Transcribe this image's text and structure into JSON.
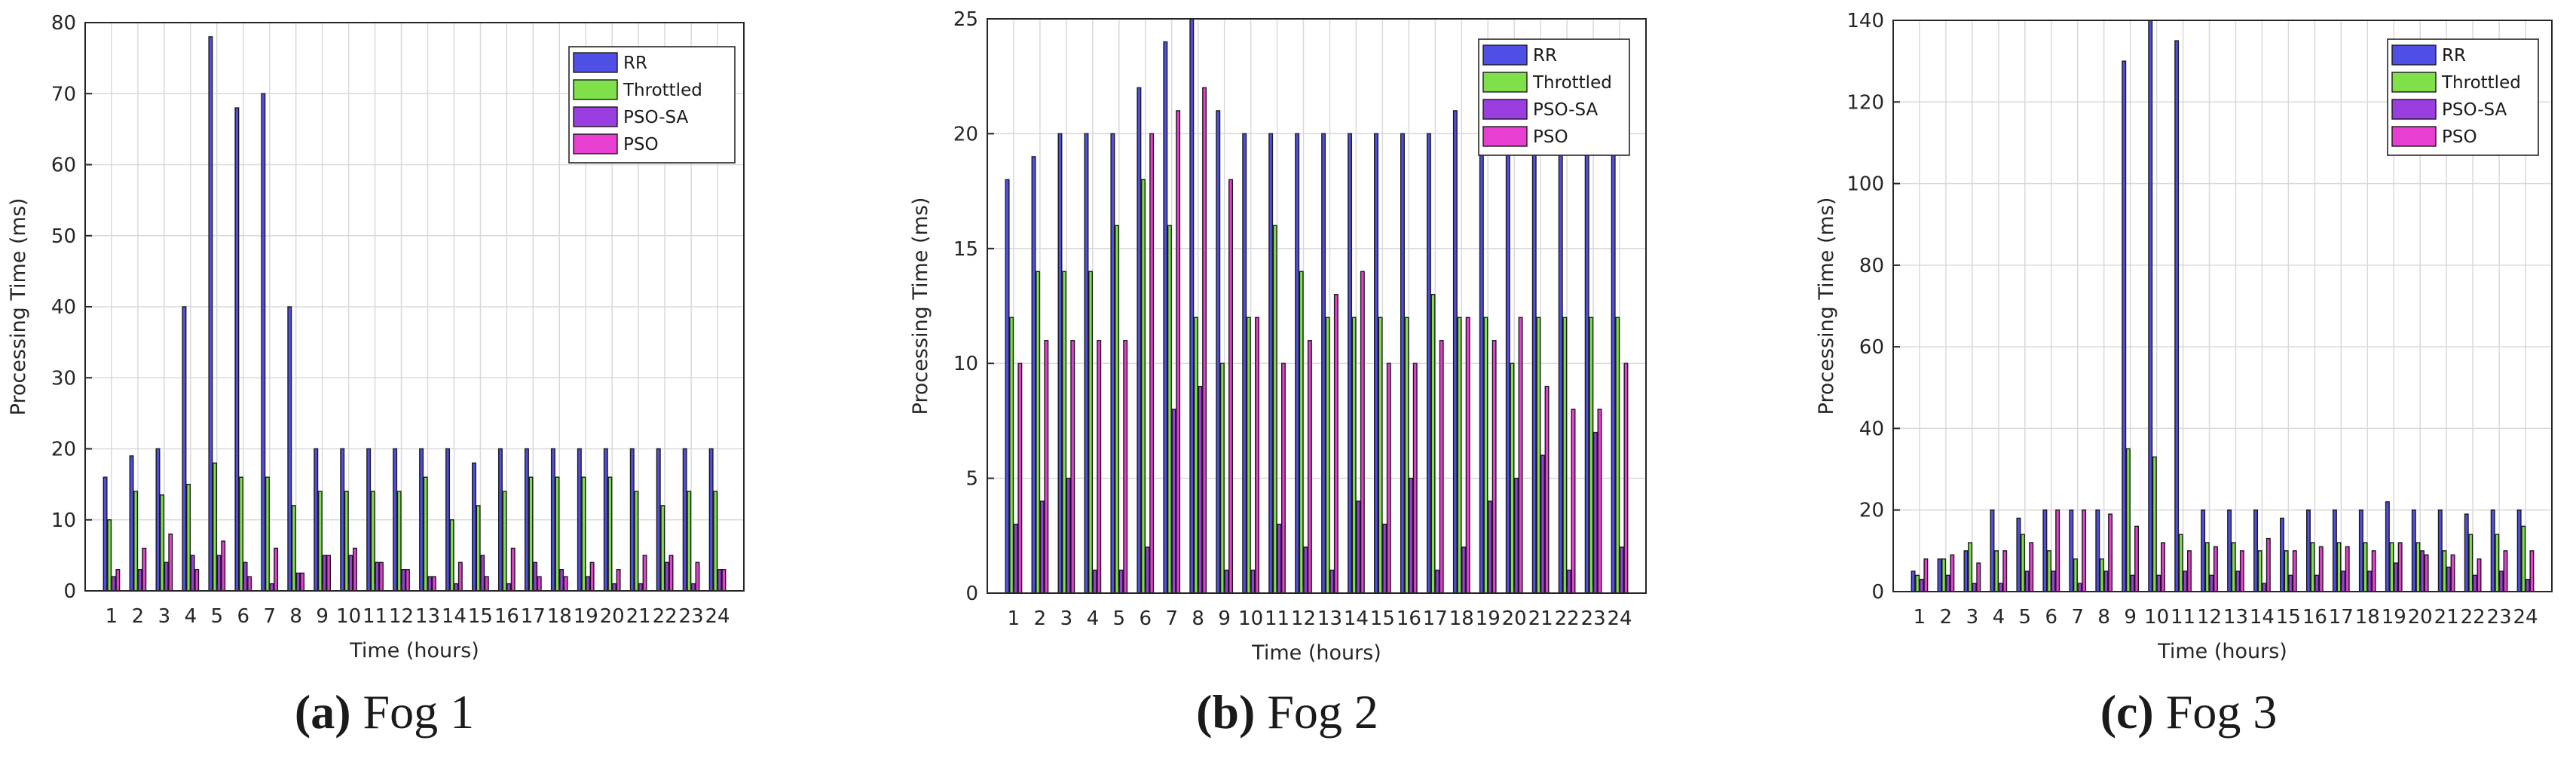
{
  "colors": {
    "RR": "#4f4fe6",
    "Throttled": "#7fe04a",
    "PSO-SA": "#9a3ee0",
    "PSO": "#e83fd2",
    "grid": "#d9d9d9",
    "axis": "#262626"
  },
  "chart_data": [
    {
      "type": "bar",
      "title": "",
      "xlabel": "Time (hours)",
      "ylabel": "Processing Time (ms)",
      "ylim": [
        0,
        80
      ],
      "yticks": [
        0,
        10,
        20,
        30,
        40,
        50,
        60,
        70,
        80
      ],
      "grid": true,
      "legend_position": "top-right",
      "categories": [
        "1",
        "2",
        "3",
        "4",
        "5",
        "6",
        "7",
        "8",
        "9",
        "10",
        "11",
        "12",
        "13",
        "14",
        "15",
        "16",
        "17",
        "18",
        "19",
        "20",
        "21",
        "22",
        "23",
        "24"
      ],
      "series": [
        {
          "name": "RR",
          "values": [
            16,
            19,
            20,
            40,
            78,
            68,
            70,
            40,
            20,
            20,
            20,
            20,
            20,
            20,
            18,
            20,
            20,
            20,
            20,
            20,
            20,
            20,
            20,
            20
          ]
        },
        {
          "name": "Throttled",
          "values": [
            10,
            14,
            13.5,
            15,
            18,
            16,
            16,
            12,
            14,
            14,
            14,
            14,
            16,
            10,
            12,
            14,
            16,
            16,
            16,
            16,
            14,
            12,
            14,
            14
          ]
        },
        {
          "name": "PSO-SA",
          "values": [
            2,
            3,
            4,
            5,
            5,
            4,
            1,
            2.5,
            5,
            5,
            4,
            3,
            2,
            1,
            5,
            1,
            4,
            3,
            2,
            1,
            1,
            4,
            1,
            3
          ]
        },
        {
          "name": "PSO",
          "values": [
            3,
            6,
            8,
            3,
            7,
            2,
            6,
            2.5,
            5,
            6,
            4,
            3,
            2,
            4,
            2,
            6,
            2,
            2,
            4,
            3,
            5,
            5,
            4,
            3
          ]
        }
      ],
      "caption_label": "(a)",
      "caption_text": "Fog 1"
    },
    {
      "type": "bar",
      "title": "",
      "xlabel": "Time (hours)",
      "ylabel": "Processing Time (ms)",
      "ylim": [
        0,
        25
      ],
      "yticks": [
        0,
        5,
        10,
        15,
        20,
        25
      ],
      "grid": true,
      "legend_position": "top-right",
      "categories": [
        "1",
        "2",
        "3",
        "4",
        "5",
        "6",
        "7",
        "8",
        "9",
        "10",
        "11",
        "12",
        "13",
        "14",
        "15",
        "16",
        "17",
        "18",
        "19",
        "20",
        "21",
        "22",
        "23",
        "24"
      ],
      "series": [
        {
          "name": "RR",
          "values": [
            18,
            19,
            20,
            20,
            20,
            22,
            24,
            25,
            21,
            20,
            20,
            20,
            20,
            20,
            20,
            20,
            20,
            21,
            20,
            20,
            20,
            20,
            20,
            20
          ]
        },
        {
          "name": "Throttled",
          "values": [
            12,
            14,
            14,
            14,
            16,
            18,
            16,
            12,
            10,
            12,
            16,
            14,
            12,
            12,
            12,
            12,
            13,
            12,
            12,
            10,
            12,
            12,
            12,
            12
          ]
        },
        {
          "name": "PSO-SA",
          "values": [
            3,
            4,
            5,
            1,
            1,
            2,
            8,
            9,
            1,
            1,
            3,
            2,
            1,
            4,
            3,
            5,
            1,
            2,
            4,
            5,
            6,
            1,
            7,
            2
          ]
        },
        {
          "name": "PSO",
          "values": [
            10,
            11,
            11,
            11,
            11,
            20,
            21,
            22,
            18,
            12,
            10,
            11,
            13,
            14,
            10,
            10,
            11,
            12,
            11,
            12,
            9,
            8,
            8,
            10
          ]
        }
      ],
      "caption_label": "(b)",
      "caption_text": "Fog 2"
    },
    {
      "type": "bar",
      "title": "",
      "xlabel": "Time (hours)",
      "ylabel": "Processing Time (ms)",
      "ylim": [
        0,
        140
      ],
      "yticks": [
        0,
        20,
        40,
        60,
        80,
        100,
        120,
        140
      ],
      "grid": true,
      "legend_position": "top-right",
      "categories": [
        "1",
        "2",
        "3",
        "4",
        "5",
        "6",
        "7",
        "8",
        "9",
        "10",
        "11",
        "12",
        "13",
        "14",
        "15",
        "16",
        "17",
        "18",
        "19",
        "20",
        "21",
        "22",
        "23",
        "24"
      ],
      "series": [
        {
          "name": "RR",
          "values": [
            5,
            8,
            10,
            20,
            18,
            20,
            20,
            20,
            130,
            140,
            135,
            20,
            20,
            20,
            18,
            20,
            20,
            20,
            22,
            20,
            20,
            19,
            20,
            20
          ]
        },
        {
          "name": "Throttled",
          "values": [
            4,
            8,
            12,
            10,
            14,
            10,
            8,
            8,
            35,
            33,
            14,
            12,
            12,
            10,
            10,
            12,
            12,
            12,
            12,
            12,
            10,
            14,
            14,
            16
          ]
        },
        {
          "name": "PSO-SA",
          "values": [
            3,
            4,
            2,
            2,
            5,
            5,
            2,
            5,
            4,
            4,
            5,
            4,
            5,
            2,
            4,
            4,
            5,
            5,
            7,
            10,
            6,
            4,
            5,
            3
          ]
        },
        {
          "name": "PSO",
          "values": [
            8,
            9,
            7,
            10,
            12,
            20,
            20,
            19,
            16,
            12,
            10,
            11,
            10,
            13,
            10,
            11,
            11,
            10,
            12,
            9,
            9,
            8,
            10,
            10
          ]
        }
      ],
      "caption_label": "(c)",
      "caption_text": "Fog 3"
    }
  ]
}
